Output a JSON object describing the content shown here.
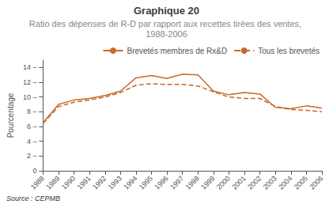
{
  "chart_data": {
    "type": "line",
    "title": "Graphique 20",
    "subtitle": "Ratio des dépenses de R-D par rapport aux recettes tirées des ventes, 1988-2006",
    "ylabel": "Pourcentage",
    "annotation": "Source : CEPMB",
    "x": [
      1988,
      1989,
      1990,
      1991,
      1992,
      1993,
      1994,
      1995,
      1996,
      1997,
      1998,
      1999,
      2000,
      2001,
      2002,
      2003,
      2004,
      2005,
      2006
    ],
    "series": [
      {
        "name": "Brevetés membres de Rx&D",
        "color": "#c8692a",
        "line_style": "solid",
        "values": [
          6.5,
          9.0,
          9.6,
          9.8,
          10.2,
          10.8,
          12.6,
          12.9,
          12.5,
          13.1,
          13.0,
          10.8,
          10.3,
          10.6,
          10.4,
          8.6,
          8.4,
          8.8,
          8.5
        ]
      },
      {
        "name": "Tous les brevetés",
        "color": "#c8692a",
        "line_style": "dashed",
        "values": [
          6.4,
          8.7,
          9.3,
          9.6,
          10.0,
          10.6,
          11.6,
          11.8,
          11.7,
          11.7,
          11.5,
          10.7,
          10.0,
          9.8,
          9.8,
          8.7,
          8.3,
          8.2,
          8.0
        ]
      }
    ],
    "xlim": [
      1988,
      2006
    ],
    "xticks": [
      1988,
      1989,
      1990,
      1991,
      1992,
      1993,
      1994,
      1995,
      1996,
      1997,
      1998,
      1999,
      2000,
      2001,
      2002,
      2003,
      2004,
      2005,
      2006
    ],
    "ylim": [
      0,
      15
    ],
    "yticks": [
      0,
      {
        "value": 2,
        "label": "2 –"
      },
      {
        "value": 4,
        "label": "4 –"
      },
      {
        "value": 6,
        "label": "6 –"
      },
      {
        "value": 8,
        "label": "8 –"
      },
      {
        "value": 10,
        "label": "10 –"
      },
      {
        "value": 12,
        "label": "12 –"
      },
      {
        "value": 14,
        "label": "14 –"
      }
    ],
    "grid": false,
    "legend": "upper right"
  }
}
